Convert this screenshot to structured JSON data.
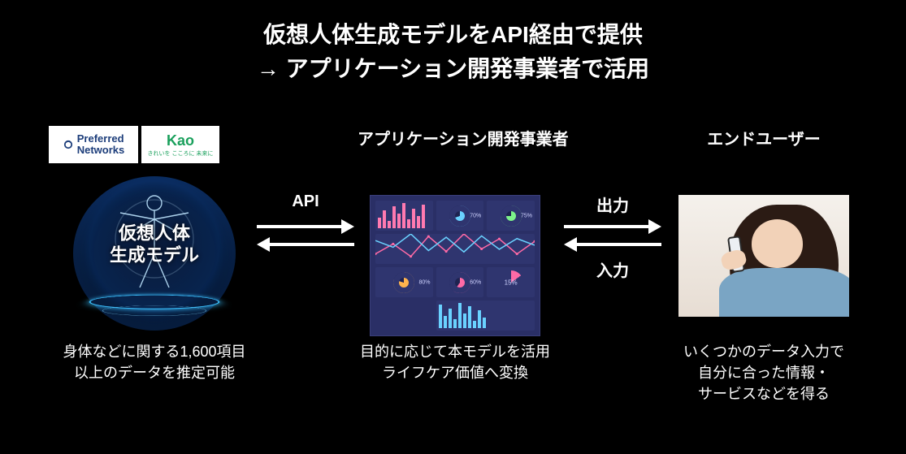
{
  "colors": {
    "background": "#000000",
    "text": "#ffffff",
    "pfn_logo_text": "#1c3d7a",
    "kao_logo_text": "#1aa05c",
    "model_glow": "#3ac0ff",
    "model_bg_inner": "#0a1a3a",
    "model_bg_mid": "#08244e",
    "dashboard_bg": "#2a2f66",
    "dashboard_panel": "#2f356f",
    "dashboard_bar": "#ff7ab0",
    "dashboard_line": "#ff6aa6",
    "dashboard_line2": "#6ad2ff",
    "dashboard_text": "#cfd3ff",
    "enduser_bg_top": "#f5f1ec",
    "enduser_bg_bot": "#e7ddd3",
    "enduser_hair": "#2b1b14",
    "enduser_skin": "#f2d2b8",
    "enduser_shirt": "#7aa5c4",
    "phone_body": "#eceff3",
    "phone_border": "#2a2a2a"
  },
  "typography": {
    "title_fontsize_pt": 21,
    "header_fontsize_pt": 15,
    "arrow_label_fontsize_pt": 15,
    "desc_fontsize_pt": 13,
    "model_caption_fontsize_pt": 16,
    "weight_bold": 700
  },
  "title": {
    "line1": "仮想人体生成モデルをAPI経由で提供",
    "line2": "→ アプリケーション開発事業者で活用"
  },
  "columns": {
    "left": {
      "logos": {
        "pfn_line1": "Preferred",
        "pfn_line2": "Networks",
        "kao_main": "Kao",
        "kao_sub": "きれいを こころに 未来に"
      },
      "model_caption_line1": "仮想人体",
      "model_caption_line2": "生成モデル",
      "desc_line1": "身体などに関する1,600項目",
      "desc_line2": "以上のデータを推定可能"
    },
    "mid": {
      "header": "アプリケーション開発事業者",
      "dashboard": {
        "type": "infographic",
        "bar_series": [
          12,
          20,
          8,
          24,
          16,
          28,
          10,
          22,
          14,
          26
        ],
        "donuts": [
          {
            "pct": 70,
            "color": "#6ad2ff",
            "label": "70%"
          },
          {
            "pct": 75,
            "color": "#7cf28a",
            "label": "75%"
          },
          {
            "pct": 80,
            "color": "#ffb44d",
            "label": "80%"
          },
          {
            "pct": 60,
            "color": "#ff6aa6",
            "label": "60%"
          }
        ],
        "wave_points_a": [
          20,
          40,
          15,
          55,
          25,
          60,
          30,
          50,
          20,
          45
        ],
        "wave_points_b": [
          35,
          25,
          45,
          20,
          40,
          18,
          42,
          22,
          38,
          28
        ],
        "pie": {
          "pct": 15,
          "label": "15%",
          "colors": [
            "#ff6aa6",
            "#2f356f"
          ]
        }
      },
      "desc_line1": "目的に応じて本モデルを活用",
      "desc_line2": "ライフケア価値へ変換"
    },
    "right": {
      "header": "エンドユーザー",
      "desc_line1": "いくつかのデータ入力で",
      "desc_line2": "自分に合った情報・",
      "desc_line3": "サービスなどを得る"
    }
  },
  "arrows": {
    "left_right_top_label": "API",
    "right_left_top_label": "出力",
    "right_left_bot_label": "入力"
  }
}
